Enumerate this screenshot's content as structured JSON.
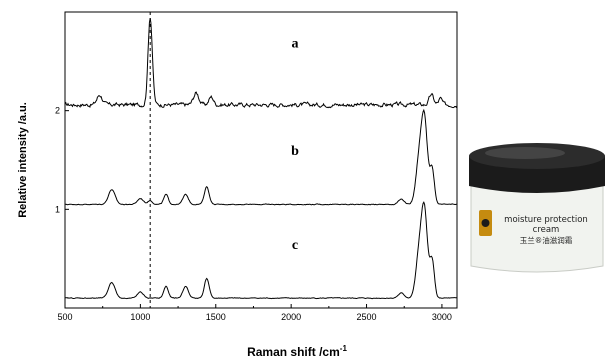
{
  "chart_data": {
    "type": "line",
    "xlabel": "Raman shift /cm",
    "xlabel_superscript": "-1",
    "ylabel": "Relative intensity /a.u.",
    "xlim": [
      500,
      3100
    ],
    "ylim": [
      0,
      3
    ],
    "x_ticks": [
      500,
      1000,
      1500,
      2000,
      2500,
      3000
    ],
    "x_tick_labels": [
      "500",
      "1000",
      "1500",
      "2000",
      "2500",
      "3000"
    ],
    "y_ticks": [
      1,
      2
    ],
    "y_tick_labels": [
      "1",
      "2"
    ],
    "reference_line_x": 1065,
    "series": [
      {
        "label": "a",
        "baseline": 2.06,
        "noise_amplitude": 0.04,
        "peaks": [
          {
            "center": 730,
            "height": 0.1,
            "width": 18
          },
          {
            "center": 1065,
            "height": 0.9,
            "width": 14
          },
          {
            "center": 1370,
            "height": 0.12,
            "width": 18
          },
          {
            "center": 1470,
            "height": 0.08,
            "width": 15
          },
          {
            "center": 2930,
            "height": 0.1,
            "width": 15
          },
          {
            "center": 2990,
            "height": 0.06,
            "width": 12
          }
        ]
      },
      {
        "label": "b",
        "baseline": 1.05,
        "noise_amplitude": 0.008,
        "peaks": [
          {
            "center": 810,
            "height": 0.15,
            "width": 22
          },
          {
            "center": 1000,
            "height": 0.06,
            "width": 20
          },
          {
            "center": 1065,
            "height": 0.04,
            "width": 15
          },
          {
            "center": 1170,
            "height": 0.1,
            "width": 15
          },
          {
            "center": 1300,
            "height": 0.1,
            "width": 18
          },
          {
            "center": 1440,
            "height": 0.18,
            "width": 16
          },
          {
            "center": 2730,
            "height": 0.05,
            "width": 20
          },
          {
            "center": 2850,
            "height": 0.45,
            "width": 22
          },
          {
            "center": 2885,
            "height": 0.8,
            "width": 20
          },
          {
            "center": 2935,
            "height": 0.35,
            "width": 15
          }
        ]
      },
      {
        "label": "c",
        "baseline": 0.1,
        "noise_amplitude": 0.008,
        "peaks": [
          {
            "center": 810,
            "height": 0.16,
            "width": 22
          },
          {
            "center": 1000,
            "height": 0.06,
            "width": 20
          },
          {
            "center": 1170,
            "height": 0.12,
            "width": 15
          },
          {
            "center": 1300,
            "height": 0.12,
            "width": 18
          },
          {
            "center": 1440,
            "height": 0.2,
            "width": 16
          },
          {
            "center": 2730,
            "height": 0.05,
            "width": 20
          },
          {
            "center": 2850,
            "height": 0.45,
            "width": 22
          },
          {
            "center": 2885,
            "height": 0.82,
            "width": 20
          },
          {
            "center": 2935,
            "height": 0.38,
            "width": 15
          }
        ]
      }
    ]
  },
  "product": {
    "line1": "moisture protection",
    "line2": "cream",
    "line3": "玉兰®油滋润霜"
  },
  "colors": {
    "line": "#000000",
    "jar_body": "#f1f3ef",
    "jar_lid": "#1b1b1b",
    "label_badge": "#c58b10"
  }
}
